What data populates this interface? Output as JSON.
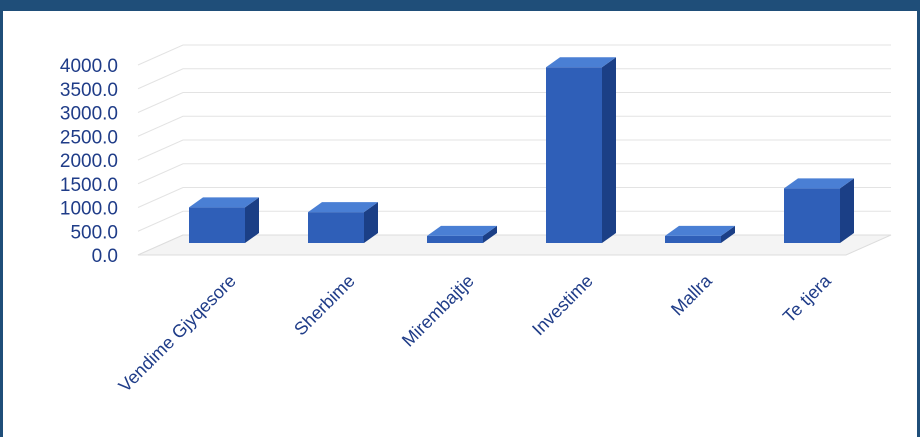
{
  "colors": {
    "frame": "#1f4e79",
    "bar_front": "#2f5fb8",
    "bar_side": "#1b3f86",
    "bar_top": "#4a7fd4",
    "text": "#1f3c88",
    "grid": "#e3e3e3"
  },
  "chart_data": {
    "type": "bar",
    "style": "3d-column",
    "title": "",
    "xlabel": "",
    "ylabel": "",
    "categories": [
      "Vendime Gjyqesore",
      "Sherbime",
      "Mirembajtje",
      "Investime",
      "Mallra",
      "Te tjera"
    ],
    "values": [
      750,
      650,
      150,
      3700,
      150,
      1150
    ],
    "ylim": [
      0,
      4000
    ],
    "ytick_labels": [
      "0.0",
      "500.0",
      "1000.0",
      "1500.0",
      "2000.0",
      "2500.0",
      "3000.0",
      "3500.0",
      "4000.0"
    ],
    "grid": true,
    "legend": "none"
  }
}
